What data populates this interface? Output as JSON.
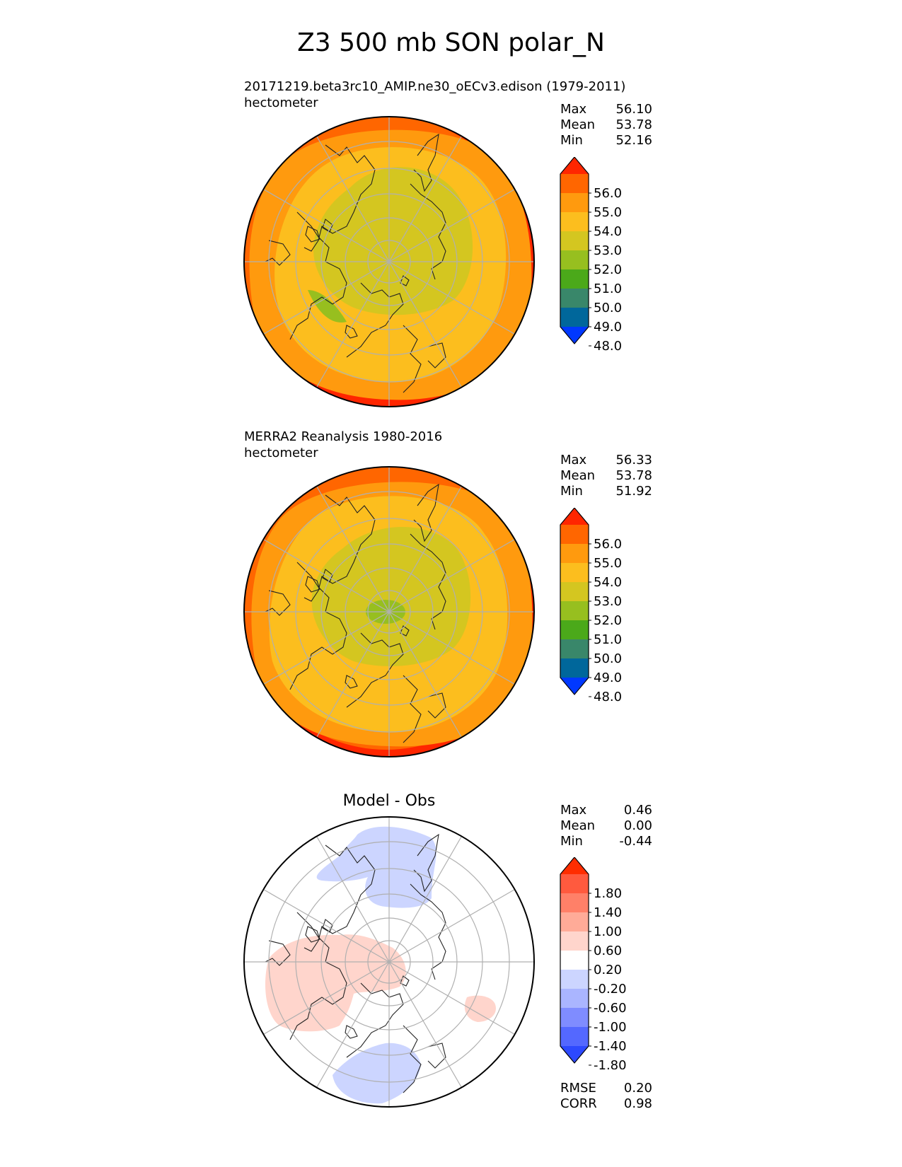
{
  "title": "Z3 500 mb SON polar_N",
  "panels": [
    {
      "id": "test",
      "subtitle": "20171219.beta3rc10_AMIP.ne30_oECv3.edison (1979-2011)",
      "units": "hectometer",
      "stats": [
        {
          "label": "Max",
          "value": "56.10"
        },
        {
          "label": "Mean",
          "value": "53.78"
        },
        {
          "label": "Min",
          "value": "52.16"
        }
      ]
    },
    {
      "id": "ref",
      "subtitle": "MERRA2 Reanalysis 1980-2016",
      "units": "hectometer",
      "stats": [
        {
          "label": "Max",
          "value": "56.33"
        },
        {
          "label": "Mean",
          "value": "53.78"
        },
        {
          "label": "Min",
          "value": "51.92"
        }
      ]
    },
    {
      "id": "diff",
      "subtitle": "Model - Obs",
      "stats": [
        {
          "label": "Max",
          "value": "0.46"
        },
        {
          "label": "Mean",
          "value": "0.00"
        },
        {
          "label": "Min",
          "value": "-0.44"
        }
      ],
      "metrics": [
        {
          "label": "RMSE",
          "value": "0.20"
        },
        {
          "label": "CORR",
          "value": "0.98"
        }
      ]
    }
  ],
  "colorbar_abs": {
    "ticks": [
      "56.0",
      "55.0",
      "54.0",
      "53.0",
      "52.0",
      "51.0",
      "50.0",
      "49.0",
      "48.0"
    ],
    "colors": [
      "#ff2600",
      "#ff6600",
      "#ff9a0e",
      "#fcbe1e",
      "#d4c620",
      "#97bf1f",
      "#4ba91a",
      "#39876a",
      "#00679b",
      "#0038ff"
    ]
  },
  "colorbar_diff": {
    "ticks": [
      "1.80",
      "1.40",
      "1.00",
      "0.60",
      "0.20",
      "-0.20",
      "-0.60",
      "-1.00",
      "-1.40",
      "-1.80"
    ],
    "colors": [
      "#ff2d00",
      "#ff5a3e",
      "#ff8068",
      "#ffab98",
      "#ffd5cc",
      "#ffffff",
      "#ccd5ff",
      "#aab5ff",
      "#7f8cff",
      "#5468ff",
      "#2d49ff"
    ]
  },
  "chart_data": [
    {
      "type": "heatmap",
      "projection": "north-polar-stereographic",
      "title": "20171219.beta3rc10_AMIP.ne30_oECv3.edison (1979-2011)",
      "units": "hectometer",
      "levels": [
        48.0,
        49.0,
        50.0,
        51.0,
        52.0,
        53.0,
        54.0,
        55.0,
        56.0
      ],
      "extend": "both",
      "max": 56.1,
      "mean": 53.78,
      "min": 52.16
    },
    {
      "type": "heatmap",
      "projection": "north-polar-stereographic",
      "title": "MERRA2 Reanalysis 1980-2016",
      "units": "hectometer",
      "levels": [
        48.0,
        49.0,
        50.0,
        51.0,
        52.0,
        53.0,
        54.0,
        55.0,
        56.0
      ],
      "extend": "both",
      "max": 56.33,
      "mean": 53.78,
      "min": 51.92
    },
    {
      "type": "heatmap",
      "projection": "north-polar-stereographic",
      "title": "Model - Obs",
      "levels": [
        -1.8,
        -1.4,
        -1.0,
        -0.6,
        -0.2,
        0.2,
        0.6,
        1.0,
        1.4,
        1.8
      ],
      "extend": "both",
      "max": 0.46,
      "mean": 0.0,
      "min": -0.44,
      "rmse": 0.2,
      "corr": 0.98
    }
  ]
}
